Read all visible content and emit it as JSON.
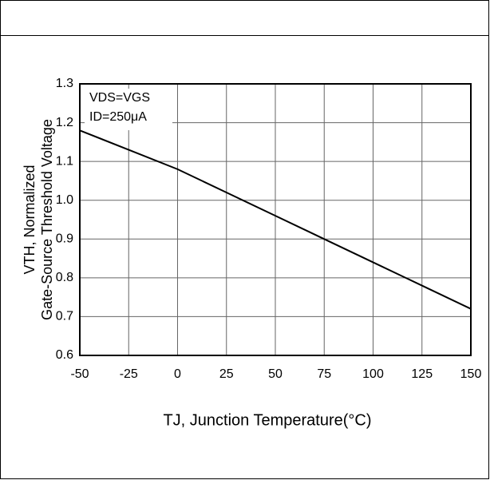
{
  "chart_data": {
    "type": "line",
    "annotations": [
      "VDS=VGS",
      "ID=250μA"
    ],
    "xlabel": "TJ, Junction Temperature(°C)",
    "ylabel": [
      "VTH, Normalized",
      "Gate-Source Threshold Voltage"
    ],
    "x": [
      -50,
      -25,
      0,
      25,
      50,
      75,
      100,
      125,
      150
    ],
    "values": [
      1.18,
      1.13,
      1.08,
      1.02,
      0.96,
      0.9,
      0.84,
      0.78,
      0.72
    ],
    "color": "#000000",
    "xlim": [
      -50,
      150
    ],
    "xticks": [
      -50,
      -25,
      0,
      25,
      50,
      75,
      100,
      125,
      150
    ],
    "ylim": [
      0.6,
      1.3
    ],
    "yticks": [
      0.6,
      0.7,
      0.8,
      0.9,
      {
        "value": 1,
        "label": "1.0"
      },
      1.1,
      1.2,
      1.3
    ],
    "grid": true
  }
}
